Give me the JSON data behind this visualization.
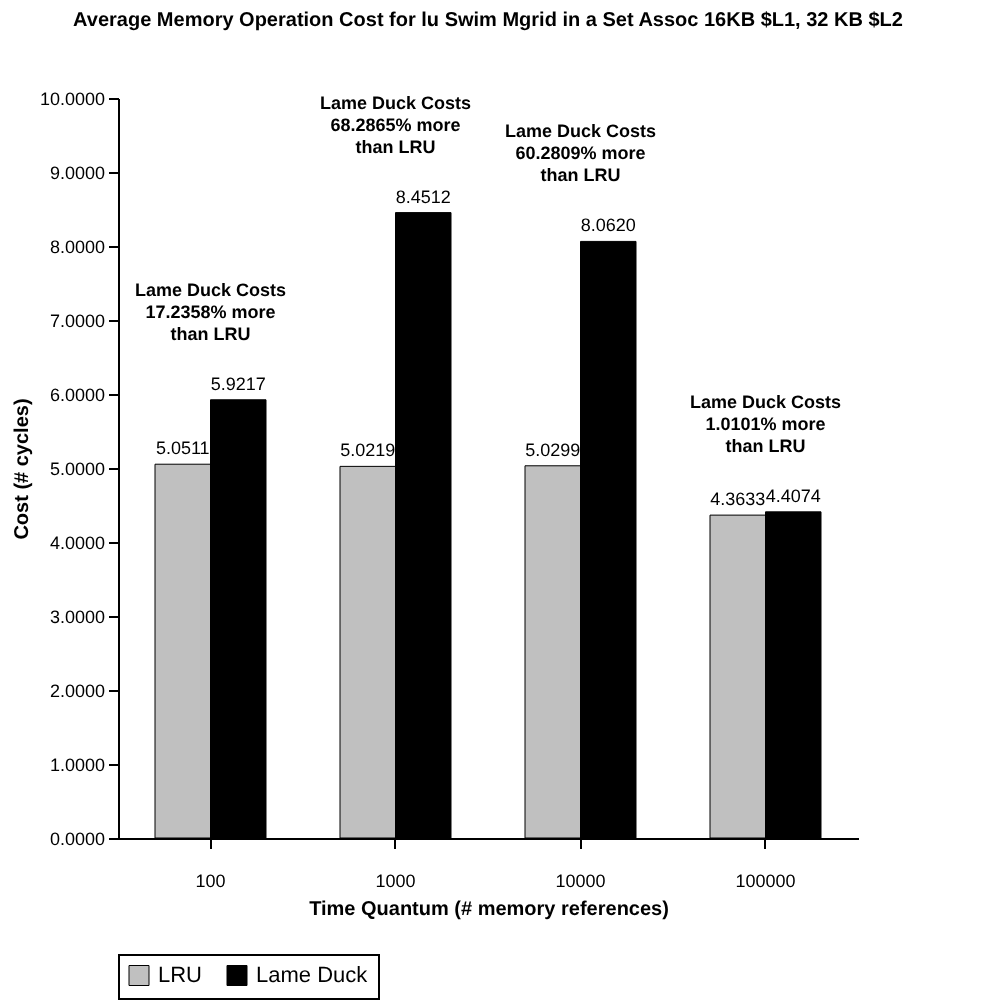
{
  "chart_data": {
    "type": "bar",
    "title": "Average Memory Operation Cost for lu Swim Mgrid in a Set Assoc 16KB $L1, 32 KB $L2",
    "xlabel": "Time Quantum (# memory references)",
    "ylabel": "Cost (# cycles)",
    "categories": [
      "100",
      "1000",
      "10000",
      "100000"
    ],
    "series": [
      {
        "name": "LRU",
        "color": "#c0c0c0",
        "values": [
          5.0511,
          5.0219,
          5.0299,
          4.3633
        ]
      },
      {
        "name": "Lame Duck",
        "color": "#000000",
        "values": [
          5.9217,
          8.4512,
          8.062,
          4.4074
        ]
      }
    ],
    "value_labels": [
      [
        "5.0511",
        "5.0219",
        "5.0299",
        "4.3633"
      ],
      [
        "5.9217",
        "8.4512",
        "8.0620",
        "4.4074"
      ]
    ],
    "ylim": [
      0,
      10
    ],
    "yticks": [
      {
        "value": 0,
        "label": "0.0000"
      },
      {
        "value": 1,
        "label": "1.0000"
      },
      {
        "value": 2,
        "label": "2.0000"
      },
      {
        "value": 3,
        "label": "3.0000"
      },
      {
        "value": 4,
        "label": "4.0000"
      },
      {
        "value": 5,
        "label": "5.0000"
      },
      {
        "value": 6,
        "label": "6.0000"
      },
      {
        "value": 7,
        "label": "7.0000"
      },
      {
        "value": 8,
        "label": "8.0000"
      },
      {
        "value": 9,
        "label": "9.0000"
      },
      {
        "value": 10,
        "label": "10.0000"
      }
    ],
    "annotations": [
      "Lame Duck Costs\n17.2358% more\nthan LRU",
      "Lame Duck Costs\n68.2865% more\nthan LRU",
      "Lame Duck Costs\n60.2809% more\nthan LRU",
      "Lame Duck Costs\n1.0101% more\nthan LRU"
    ],
    "grid": false,
    "legend": "bottom"
  }
}
